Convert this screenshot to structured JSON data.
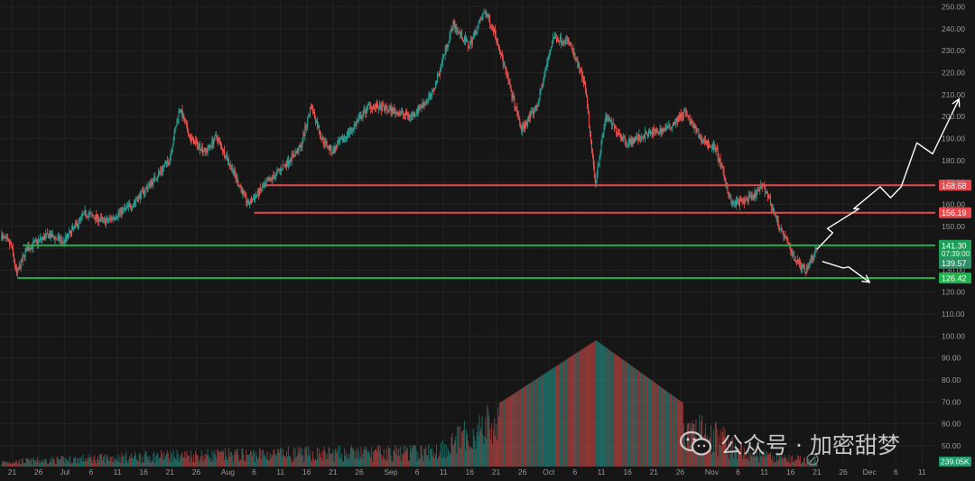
{
  "chart_data": {
    "type": "candlestick",
    "ylim": [
      45,
      253
    ],
    "price_ticks": [
      50,
      60,
      70,
      80,
      90,
      100,
      110,
      120,
      130,
      140,
      150,
      160,
      170,
      180,
      190,
      200,
      210,
      220,
      230,
      240,
      250
    ],
    "price_tick_labels": [
      "50.00",
      "60.00",
      "70.00",
      "80.00",
      "90.00",
      "100.00",
      "110.00",
      "120.00",
      "130.00",
      "140.00",
      "150.00",
      "160.00",
      "170.00",
      "180.00",
      "190.00",
      "200.00",
      "210.00",
      "220.00",
      "230.00",
      "240.00",
      "250.00"
    ],
    "x_axis": [
      {
        "label": "21",
        "date": "2024-06-21"
      },
      {
        "label": "26",
        "date": "2024-06-26"
      },
      {
        "label": "Jul",
        "date": "2024-07-01"
      },
      {
        "label": "6",
        "date": "2024-07-06"
      },
      {
        "label": "11",
        "date": "2024-07-11"
      },
      {
        "label": "16",
        "date": "2024-07-16"
      },
      {
        "label": "21",
        "date": "2024-07-21"
      },
      {
        "label": "26",
        "date": "2024-07-26"
      },
      {
        "label": "Aug",
        "date": "2024-08-01"
      },
      {
        "label": "6",
        "date": "2024-08-06"
      },
      {
        "label": "11",
        "date": "2024-08-11"
      },
      {
        "label": "16",
        "date": "2024-08-16"
      },
      {
        "label": "21",
        "date": "2024-08-21"
      },
      {
        "label": "26",
        "date": "2024-08-26"
      },
      {
        "label": "Sep",
        "date": "2024-09-01"
      },
      {
        "label": "6",
        "date": "2024-09-06"
      },
      {
        "label": "11",
        "date": "2024-09-11"
      },
      {
        "label": "16",
        "date": "2024-09-16"
      },
      {
        "label": "21",
        "date": "2024-09-21"
      },
      {
        "label": "26",
        "date": "2024-09-26"
      },
      {
        "label": "Oct",
        "date": "2024-10-01"
      },
      {
        "label": "6",
        "date": "2024-10-06"
      },
      {
        "label": "11",
        "date": "2024-10-11"
      },
      {
        "label": "16",
        "date": "2024-10-16"
      },
      {
        "label": "21",
        "date": "2024-10-21"
      },
      {
        "label": "26",
        "date": "2024-10-26"
      },
      {
        "label": "Nov",
        "date": "2024-11-01"
      },
      {
        "label": "6",
        "date": "2024-11-06"
      },
      {
        "label": "11",
        "date": "2024-11-11"
      },
      {
        "label": "16",
        "date": "2024-11-16"
      },
      {
        "label": "21",
        "date": "2024-11-21"
      },
      {
        "label": "26",
        "date": "2024-11-26"
      },
      {
        "label": "Dec",
        "date": "2024-12-01"
      },
      {
        "label": "6",
        "date": "2024-12-06"
      },
      {
        "label": "11",
        "date": "2024-12-11"
      }
    ],
    "price_path": [
      {
        "date": "2024-06-19",
        "price": 146
      },
      {
        "date": "2024-06-21",
        "price": 141
      },
      {
        "date": "2024-06-22",
        "price": 128
      },
      {
        "date": "2024-06-24",
        "price": 140
      },
      {
        "date": "2024-06-28",
        "price": 146
      },
      {
        "date": "2024-07-01",
        "price": 143
      },
      {
        "date": "2024-07-05",
        "price": 156
      },
      {
        "date": "2024-07-09",
        "price": 152
      },
      {
        "date": "2024-07-14",
        "price": 160
      },
      {
        "date": "2024-07-18",
        "price": 171
      },
      {
        "date": "2024-07-21",
        "price": 180
      },
      {
        "date": "2024-07-23",
        "price": 204
      },
      {
        "date": "2024-07-25",
        "price": 190
      },
      {
        "date": "2024-07-28",
        "price": 184
      },
      {
        "date": "2024-07-30",
        "price": 191
      },
      {
        "date": "2024-08-02",
        "price": 176
      },
      {
        "date": "2024-08-05",
        "price": 160
      },
      {
        "date": "2024-08-08",
        "price": 168
      },
      {
        "date": "2024-08-12",
        "price": 178
      },
      {
        "date": "2024-08-15",
        "price": 186
      },
      {
        "date": "2024-08-17",
        "price": 205
      },
      {
        "date": "2024-08-19",
        "price": 190
      },
      {
        "date": "2024-08-21",
        "price": 184
      },
      {
        "date": "2024-08-25",
        "price": 195
      },
      {
        "date": "2024-08-28",
        "price": 205
      },
      {
        "date": "2024-09-01",
        "price": 203
      },
      {
        "date": "2024-09-05",
        "price": 200
      },
      {
        "date": "2024-09-09",
        "price": 210
      },
      {
        "date": "2024-09-13",
        "price": 242
      },
      {
        "date": "2024-09-16",
        "price": 232
      },
      {
        "date": "2024-09-19",
        "price": 248
      },
      {
        "date": "2024-09-21",
        "price": 238
      },
      {
        "date": "2024-09-23",
        "price": 220
      },
      {
        "date": "2024-09-26",
        "price": 194
      },
      {
        "date": "2024-09-29",
        "price": 205
      },
      {
        "date": "2024-10-02",
        "price": 236
      },
      {
        "date": "2024-10-05",
        "price": 234
      },
      {
        "date": "2024-10-08",
        "price": 215
      },
      {
        "date": "2024-10-10",
        "price": 170
      },
      {
        "date": "2024-10-12",
        "price": 200
      },
      {
        "date": "2024-10-16",
        "price": 188
      },
      {
        "date": "2024-10-20",
        "price": 192
      },
      {
        "date": "2024-10-24",
        "price": 195
      },
      {
        "date": "2024-10-27",
        "price": 202
      },
      {
        "date": "2024-10-30",
        "price": 190
      },
      {
        "date": "2024-11-02",
        "price": 185
      },
      {
        "date": "2024-11-05",
        "price": 160
      },
      {
        "date": "2024-11-09",
        "price": 163
      },
      {
        "date": "2024-11-11",
        "price": 169
      },
      {
        "date": "2024-11-14",
        "price": 150
      },
      {
        "date": "2024-11-17",
        "price": 135
      },
      {
        "date": "2024-11-19",
        "price": 130
      },
      {
        "date": "2024-11-21",
        "price": 139.57
      }
    ],
    "volume_ylim": [
      0,
      1
    ],
    "volume_path": [
      {
        "date": "2024-06-19",
        "level": 0.05
      },
      {
        "date": "2024-07-20",
        "level": 0.12
      },
      {
        "date": "2024-08-15",
        "level": 0.14
      },
      {
        "date": "2024-09-09",
        "level": 0.16
      },
      {
        "date": "2024-10-10",
        "level": 1.0
      },
      {
        "date": "2024-11-08",
        "level": 0.13
      },
      {
        "date": "2024-11-21",
        "level": 0.06
      }
    ],
    "levels": [
      {
        "value": 168.68,
        "label": "168.68",
        "color": "#e5484d",
        "from": "2024-08-08"
      },
      {
        "value": 156.19,
        "label": "156.19",
        "color": "#e5484d",
        "from": "2024-08-06"
      },
      {
        "value": 141.3,
        "label": "141.30",
        "color": "#22b14c",
        "from": "2024-06-23"
      },
      {
        "value": 126.42,
        "label": "126.42",
        "color": "#22b14c",
        "from": "2024-06-22"
      }
    ],
    "price_tags": [
      {
        "value": 141.3,
        "label": "141.30",
        "sublabel": "07:39:00",
        "color": "#1e9e57"
      },
      {
        "value": 133.2,
        "label": "139.57",
        "color": "#2f8f66"
      }
    ],
    "volume_tag": {
      "label": "239.05K",
      "color": "#1f9a6a"
    },
    "scenario_up": [
      {
        "date": "2024-11-21",
        "price": 139.5
      },
      {
        "date": "2024-11-24",
        "price": 147
      },
      {
        "date": "2024-11-23",
        "price": 149
      },
      {
        "date": "2024-11-29",
        "price": 158
      },
      {
        "date": "2024-11-28",
        "price": 158
      },
      {
        "date": "2024-12-03",
        "price": 168
      },
      {
        "date": "2024-12-05",
        "price": 163
      },
      {
        "date": "2024-12-07",
        "price": 168
      },
      {
        "date": "2024-12-10",
        "price": 188
      },
      {
        "date": "2024-12-13",
        "price": 183
      },
      {
        "date": "2024-12-18",
        "price": 208
      }
    ],
    "scenario_down": [
      {
        "date": "2024-11-22",
        "price": 134
      },
      {
        "date": "2024-11-26",
        "price": 131
      },
      {
        "date": "2024-11-27",
        "price": 131.5
      },
      {
        "date": "2024-12-01",
        "price": 124.5
      }
    ],
    "colors": {
      "background": "#161616",
      "up": "#26a69a",
      "down": "#ef5350",
      "grid": "#232323",
      "text": "#9a9a9a"
    }
  },
  "watermark": {
    "text": "公众号 · 加密甜梦"
  }
}
